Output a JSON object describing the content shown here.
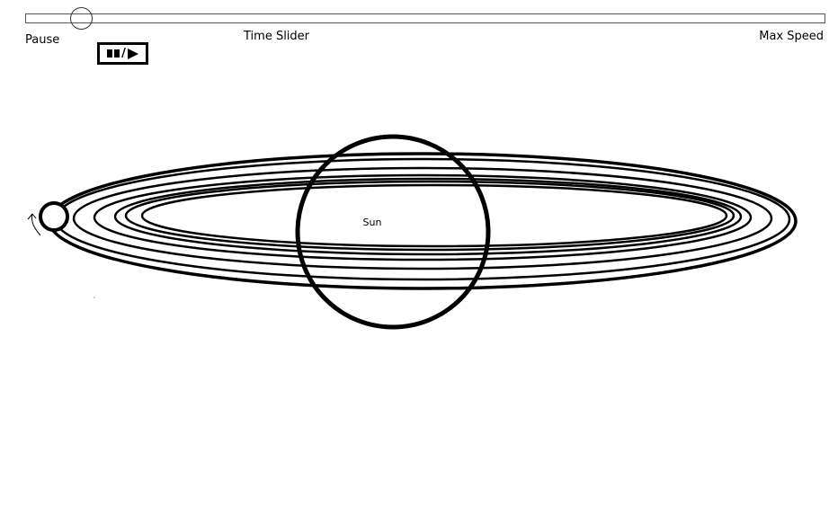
{
  "controls": {
    "pause_label": "Pause",
    "time_slider_label": "Time Slider",
    "max_speed_label": "Max Speed",
    "play_pause_icon": "pause-play-icon",
    "speed_fraction": 0.06
  },
  "scene": {
    "sun_label": "Sun"
  }
}
